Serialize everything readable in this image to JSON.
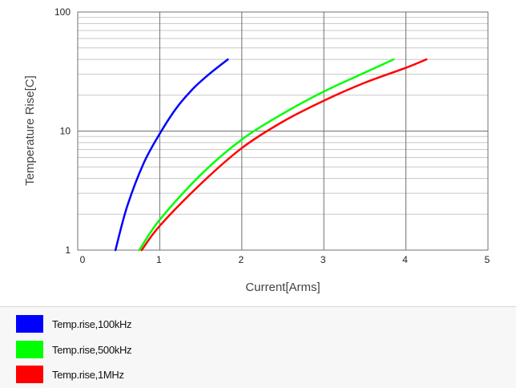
{
  "chart_data": {
    "type": "line",
    "title": "",
    "xlabel": "Current[Arms]",
    "ylabel": "Temperature Rise[C]",
    "xlim": [
      0,
      5
    ],
    "ylim": [
      1,
      100
    ],
    "y_scale": "log",
    "grid": true,
    "legend_position": "bottom",
    "x_ticks": [
      {
        "value": 0,
        "label": "0"
      },
      {
        "value": 1,
        "label": "1"
      },
      {
        "value": 2,
        "label": "2"
      },
      {
        "value": 3,
        "label": "3"
      },
      {
        "value": 4,
        "label": "4"
      },
      {
        "value": 5,
        "label": "5"
      }
    ],
    "y_ticks": [
      {
        "value": 1,
        "label": "1"
      },
      {
        "value": 10,
        "label": "10"
      },
      {
        "value": 100,
        "label": "100"
      }
    ],
    "series": [
      {
        "name": "Temp.rise,100kHz",
        "color": "#0000ff",
        "x": [
          0.46,
          0.6,
          0.8,
          1.0,
          1.2,
          1.4,
          1.6,
          1.83
        ],
        "y": [
          1.0,
          2.3,
          5.3,
          9.5,
          15.5,
          22.5,
          30.0,
          40.0
        ]
      },
      {
        "name": "Temp.rise,500kHz",
        "color": "#00ff00",
        "x": [
          0.75,
          1.0,
          1.5,
          2.0,
          2.5,
          3.0,
          3.5,
          3.85
        ],
        "y": [
          1.0,
          1.8,
          4.3,
          8.5,
          14.0,
          21.5,
          31.0,
          40.0
        ]
      },
      {
        "name": "Temp.rise,1MHz",
        "color": "#ff0000",
        "x": [
          0.78,
          1.0,
          1.5,
          2.0,
          2.5,
          3.0,
          3.5,
          4.0,
          4.25
        ],
        "y": [
          1.0,
          1.6,
          3.6,
          7.2,
          12.0,
          18.0,
          25.5,
          34.0,
          40.0
        ]
      }
    ]
  },
  "legend": {
    "items": [
      {
        "label": "Temp.rise,100kHz",
        "color": "#0000ff"
      },
      {
        "label": "Temp.rise,500kHz",
        "color": "#00ff00"
      },
      {
        "label": "Temp.rise,1MHz",
        "color": "#ff0000"
      }
    ]
  }
}
